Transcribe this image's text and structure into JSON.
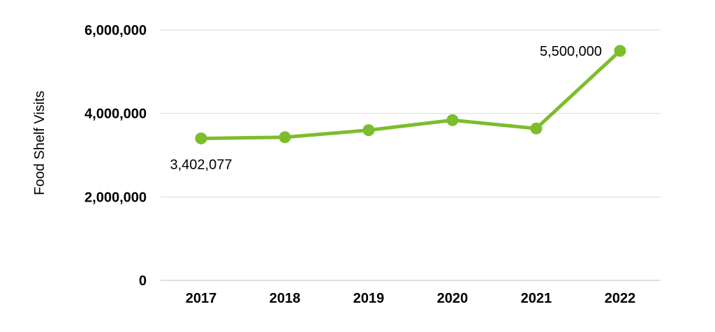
{
  "chart_data": {
    "type": "line",
    "x": [
      "2017",
      "2018",
      "2019",
      "2020",
      "2021",
      "2022"
    ],
    "series": [
      {
        "values": [
          3402077,
          3430000,
          3600000,
          3840000,
          3640000,
          5500000
        ],
        "color": "#7dbd2b"
      }
    ],
    "ylabel": "Food Shelf Visits",
    "xlabel": "",
    "ylim": [
      0,
      6000000
    ],
    "yticks": [
      "0",
      "2,000,000",
      "4,000,000",
      "6,000,000"
    ],
    "yticks_values": [
      0,
      2000000,
      4000000,
      6000000
    ],
    "data_labels": [
      {
        "index": 0,
        "text": "3,402,077",
        "placement": "below"
      },
      {
        "index": 5,
        "text": "5,500,000",
        "placement": "left"
      }
    ],
    "grid": true,
    "legend": "none"
  }
}
